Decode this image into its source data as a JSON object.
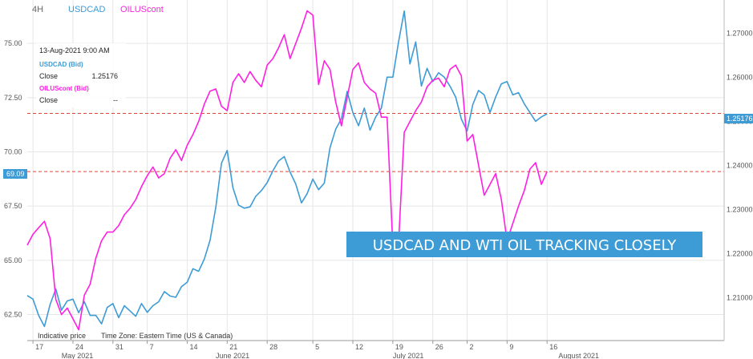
{
  "header": {
    "timeframe": "4H",
    "symbols": [
      "USDCAD",
      "OILUScont"
    ]
  },
  "info_box": {
    "datetime": "13-Aug-2021 9:00 AM",
    "usdcad_label": "USDCAD (Bid)",
    "usdcad_close_label": "Close",
    "usdcad_close_value": "1.25176",
    "oil_label": "OILUScont (Bid)",
    "oil_close_label": "Close",
    "oil_close_value": "--"
  },
  "footer": {
    "indicative": "Indicative price",
    "timezone": "Time Zone: Eastern Time (US & Canada)"
  },
  "banner_text": "USDCAD AND WTI OIL TRACKING CLOSELY",
  "price_labels": {
    "usdcad_last": "1.25176",
    "oil_last": "69.09"
  },
  "colors": {
    "usdcad": "#3d9bd6",
    "oil": "#ff1fe3",
    "banner": "#3d9bd6",
    "ref_line": "#e0433a"
  },
  "chart_data": {
    "type": "line",
    "x_start": "2021-04-16",
    "x_end": "2021-08-16",
    "x_ticks": [
      {
        "date": "2021-04-17",
        "label": "17"
      },
      {
        "date": "2021-04-24",
        "label": "24"
      },
      {
        "date": "2021-05-01",
        "label": "31"
      },
      {
        "date": "2021-05-07",
        "label": "7"
      },
      {
        "date": "2021-05-14",
        "label": "14"
      },
      {
        "date": "2021-05-21",
        "label": "21"
      },
      {
        "date": "2021-05-28",
        "label": "28"
      },
      {
        "date": "2021-06-05",
        "label": "5"
      },
      {
        "date": "2021-06-12",
        "label": "12"
      },
      {
        "date": "2021-06-19",
        "label": "19"
      },
      {
        "date": "2021-06-26",
        "label": "26"
      },
      {
        "date": "2021-07-02",
        "label": "2"
      },
      {
        "date": "2021-07-09",
        "label": "9"
      },
      {
        "date": "2021-07-16",
        "label": "16"
      }
    ],
    "month_labels": [
      {
        "date": "2021-04-22",
        "label": "May 2021"
      },
      {
        "date": "2021-05-19",
        "label": "June 2021"
      },
      {
        "date": "2021-06-19",
        "label": "July 2021"
      },
      {
        "date": "2021-07-18",
        "label": "August 2021"
      }
    ],
    "left_axis": {
      "min": 61.3,
      "max": 77.0,
      "ticks": [
        "62.50",
        "65.00",
        "67.50",
        "70.00",
        "72.50",
        "75.00"
      ]
    },
    "right_axis": {
      "min": 1.2003,
      "max": 1.2775,
      "ticks": [
        "1.21000",
        "1.22000",
        "1.23000",
        "1.24000",
        "1.25000",
        "1.26000",
        "1.27000"
      ]
    },
    "ref_lines": {
      "usdcad": 1.2518,
      "oil": 69.09
    },
    "series": [
      {
        "name": "USDCAD",
        "axis": "right",
        "color": "#3d9bd6",
        "points": [
          [
            "2021-04-16",
            1.2105
          ],
          [
            "2021-04-17",
            1.2097
          ],
          [
            "2021-04-18",
            1.206
          ],
          [
            "2021-04-19",
            1.2035
          ],
          [
            "2021-04-20",
            1.2085
          ],
          [
            "2021-04-21",
            1.212
          ],
          [
            "2021-04-22",
            1.2072
          ],
          [
            "2021-04-23",
            1.2093
          ],
          [
            "2021-04-24",
            1.2097
          ],
          [
            "2021-04-25",
            1.2066
          ],
          [
            "2021-04-26",
            1.2091
          ],
          [
            "2021-04-27",
            1.206
          ],
          [
            "2021-04-28",
            1.206
          ],
          [
            "2021-04-29",
            1.2041
          ],
          [
            "2021-04-30",
            1.2078
          ],
          [
            "2021-05-01",
            1.2087
          ],
          [
            "2021-05-02",
            1.2055
          ],
          [
            "2021-05-03",
            1.2082
          ],
          [
            "2021-05-04",
            1.207
          ],
          [
            "2021-05-05",
            1.2058
          ],
          [
            "2021-05-06",
            1.2087
          ],
          [
            "2021-05-07",
            1.2067
          ],
          [
            "2021-05-08",
            1.2082
          ],
          [
            "2021-05-09",
            1.2091
          ],
          [
            "2021-05-10",
            1.2114
          ],
          [
            "2021-05-11",
            1.2104
          ],
          [
            "2021-05-12",
            1.2101
          ],
          [
            "2021-05-13",
            1.2125
          ],
          [
            "2021-05-14",
            1.2135
          ],
          [
            "2021-05-15",
            1.2166
          ],
          [
            "2021-05-16",
            1.216
          ],
          [
            "2021-05-17",
            1.2188
          ],
          [
            "2021-05-18",
            1.223
          ],
          [
            "2021-05-19",
            1.2305
          ],
          [
            "2021-05-20",
            1.2405
          ],
          [
            "2021-05-21",
            1.2434
          ],
          [
            "2021-05-22",
            1.235
          ],
          [
            "2021-05-23",
            1.231
          ],
          [
            "2021-05-24",
            1.2303
          ],
          [
            "2021-05-25",
            1.2306
          ],
          [
            "2021-05-26",
            1.233
          ],
          [
            "2021-05-27",
            1.2343
          ],
          [
            "2021-05-28",
            1.2361
          ],
          [
            "2021-05-29",
            1.2388
          ],
          [
            "2021-05-30",
            1.241
          ],
          [
            "2021-05-31",
            1.242
          ],
          [
            "2021-06-01",
            1.2385
          ],
          [
            "2021-06-02",
            1.2358
          ],
          [
            "2021-06-03",
            1.2315
          ],
          [
            "2021-06-04",
            1.2336
          ],
          [
            "2021-06-05",
            1.2369
          ],
          [
            "2021-06-06",
            1.2345
          ],
          [
            "2021-06-07",
            1.236
          ],
          [
            "2021-06-08",
            1.244
          ],
          [
            "2021-06-09",
            1.2482
          ],
          [
            "2021-06-10",
            1.2506
          ],
          [
            "2021-06-11",
            1.2568
          ],
          [
            "2021-06-12",
            1.252
          ],
          [
            "2021-06-13",
            1.249
          ],
          [
            "2021-06-14",
            1.253
          ],
          [
            "2021-06-15",
            1.248
          ],
          [
            "2021-06-16",
            1.251
          ],
          [
            "2021-06-17",
            1.253
          ],
          [
            "2021-06-18",
            1.26
          ],
          [
            "2021-06-19",
            1.26
          ],
          [
            "2021-06-20",
            1.268
          ],
          [
            "2021-06-21",
            1.275
          ],
          [
            "2021-06-22",
            1.263
          ],
          [
            "2021-06-23",
            1.268
          ],
          [
            "2021-06-24",
            1.258
          ],
          [
            "2021-06-25",
            1.262
          ],
          [
            "2021-06-26",
            1.259
          ],
          [
            "2021-06-27",
            1.261
          ],
          [
            "2021-06-28",
            1.26
          ],
          [
            "2021-06-29",
            1.258
          ],
          [
            "2021-06-30",
            1.2555
          ],
          [
            "2021-07-01",
            1.2505
          ],
          [
            "2021-07-02",
            1.2478
          ],
          [
            "2021-07-03",
            1.2538
          ],
          [
            "2021-07-04",
            1.257
          ],
          [
            "2021-07-05",
            1.256
          ],
          [
            "2021-07-06",
            1.252
          ],
          [
            "2021-07-07",
            1.2555
          ],
          [
            "2021-07-08",
            1.2585
          ],
          [
            "2021-07-09",
            1.259
          ],
          [
            "2021-07-10",
            1.256
          ],
          [
            "2021-07-11",
            1.2565
          ],
          [
            "2021-07-12",
            1.254
          ],
          [
            "2021-07-13",
            1.252
          ],
          [
            "2021-07-14",
            1.25
          ],
          [
            "2021-07-15",
            1.251
          ],
          [
            "2021-07-16",
            1.2517
          ]
        ]
      },
      {
        "name": "OILUScont",
        "axis": "left",
        "color": "#ff1fe3",
        "points": [
          [
            "2021-04-16",
            65.7
          ],
          [
            "2021-04-17",
            66.2
          ],
          [
            "2021-04-18",
            66.5
          ],
          [
            "2021-04-19",
            66.8
          ],
          [
            "2021-04-20",
            66.0
          ],
          [
            "2021-04-21",
            63.2
          ],
          [
            "2021-04-22",
            62.5
          ],
          [
            "2021-04-23",
            62.8
          ],
          [
            "2021-04-24",
            62.3
          ],
          [
            "2021-04-25",
            61.8
          ],
          [
            "2021-04-26",
            63.4
          ],
          [
            "2021-04-27",
            63.9
          ],
          [
            "2021-04-28",
            65.1
          ],
          [
            "2021-04-29",
            65.9
          ],
          [
            "2021-04-30",
            66.3
          ],
          [
            "2021-05-01",
            66.3
          ],
          [
            "2021-05-02",
            66.6
          ],
          [
            "2021-05-03",
            67.1
          ],
          [
            "2021-05-04",
            67.4
          ],
          [
            "2021-05-05",
            67.8
          ],
          [
            "2021-05-06",
            68.4
          ],
          [
            "2021-05-07",
            68.9
          ],
          [
            "2021-05-08",
            69.3
          ],
          [
            "2021-05-09",
            68.8
          ],
          [
            "2021-05-10",
            69.0
          ],
          [
            "2021-05-11",
            69.7
          ],
          [
            "2021-05-12",
            70.1
          ],
          [
            "2021-05-13",
            69.6
          ],
          [
            "2021-05-14",
            70.3
          ],
          [
            "2021-05-15",
            70.8
          ],
          [
            "2021-05-16",
            71.4
          ],
          [
            "2021-05-17",
            72.2
          ],
          [
            "2021-05-18",
            72.8
          ],
          [
            "2021-05-19",
            72.9
          ],
          [
            "2021-05-20",
            72.1
          ],
          [
            "2021-05-21",
            71.9
          ],
          [
            "2021-05-22",
            73.2
          ],
          [
            "2021-05-23",
            73.6
          ],
          [
            "2021-05-24",
            73.2
          ],
          [
            "2021-05-25",
            73.7
          ],
          [
            "2021-05-26",
            73.3
          ],
          [
            "2021-05-27",
            73.0
          ],
          [
            "2021-05-28",
            74.0
          ],
          [
            "2021-05-29",
            74.3
          ],
          [
            "2021-05-30",
            74.8
          ],
          [
            "2021-05-31",
            75.4
          ],
          [
            "2021-06-01",
            74.3
          ],
          [
            "2021-06-02",
            75.0
          ],
          [
            "2021-06-03",
            75.7
          ],
          [
            "2021-06-04",
            76.5
          ],
          [
            "2021-06-05",
            76.3
          ],
          [
            "2021-06-06",
            73.1
          ],
          [
            "2021-06-07",
            74.2
          ],
          [
            "2021-06-08",
            73.8
          ],
          [
            "2021-06-09",
            72.3
          ],
          [
            "2021-06-10",
            71.2
          ],
          [
            "2021-06-11",
            72.5
          ],
          [
            "2021-06-12",
            73.8
          ],
          [
            "2021-06-13",
            74.1
          ],
          [
            "2021-06-14",
            73.2
          ],
          [
            "2021-06-15",
            72.9
          ],
          [
            "2021-06-16",
            72.7
          ],
          [
            "2021-06-17",
            71.6
          ],
          [
            "2021-06-18",
            71.6
          ],
          [
            "2021-06-19",
            65.6
          ],
          [
            "2021-06-20",
            65.8
          ],
          [
            "2021-06-21",
            70.9
          ],
          [
            "2021-06-22",
            71.4
          ],
          [
            "2021-06-23",
            71.9
          ],
          [
            "2021-06-24",
            72.3
          ],
          [
            "2021-06-25",
            73.0
          ],
          [
            "2021-06-26",
            73.3
          ],
          [
            "2021-06-27",
            73.4
          ],
          [
            "2021-06-28",
            73.0
          ],
          [
            "2021-06-29",
            73.8
          ],
          [
            "2021-06-30",
            74.0
          ],
          [
            "2021-07-01",
            73.5
          ],
          [
            "2021-07-02",
            70.5
          ],
          [
            "2021-07-03",
            70.8
          ],
          [
            "2021-07-04",
            69.4
          ],
          [
            "2021-07-05",
            68.0
          ],
          [
            "2021-07-06",
            68.5
          ],
          [
            "2021-07-07",
            69.0
          ],
          [
            "2021-07-08",
            67.8
          ],
          [
            "2021-07-09",
            65.9
          ],
          [
            "2021-07-10",
            66.7
          ],
          [
            "2021-07-11",
            67.5
          ],
          [
            "2021-07-12",
            68.2
          ],
          [
            "2021-07-13",
            69.2
          ],
          [
            "2021-07-14",
            69.5
          ],
          [
            "2021-07-15",
            68.5
          ],
          [
            "2021-07-16",
            69.09
          ]
        ]
      }
    ]
  }
}
